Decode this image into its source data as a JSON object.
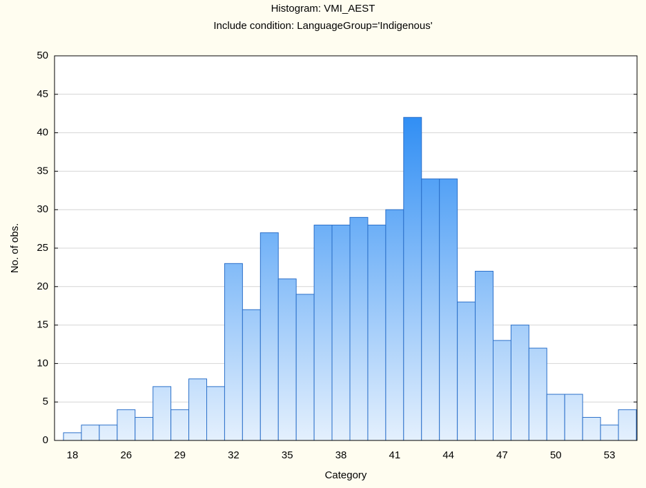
{
  "chart_data": {
    "type": "bar",
    "title": "Histogram: VMI_AEST",
    "subtitle": "Include condition: LanguageGroup='Indigenous'",
    "x_label": "Category",
    "y_label": "No. of obs.",
    "categories": [
      "18",
      null,
      null,
      "26",
      null,
      null,
      "29",
      null,
      null,
      "32",
      null,
      null,
      "35",
      null,
      null,
      "38",
      null,
      null,
      "41",
      null,
      null,
      "44",
      null,
      null,
      "47",
      null,
      null,
      "50",
      null,
      null,
      "53",
      null
    ],
    "values": [
      1,
      2,
      2,
      4,
      3,
      7,
      4,
      8,
      7,
      23,
      17,
      27,
      21,
      19,
      28,
      28,
      29,
      28,
      30,
      42,
      34,
      34,
      18,
      22,
      13,
      15,
      12,
      6,
      6,
      3,
      2,
      4
    ],
    "color": "#3f97f5",
    "ylim": [
      0,
      50
    ],
    "yticks": [
      0,
      5,
      10,
      15,
      20,
      25,
      30,
      35,
      40,
      45,
      50
    ],
    "grid": true
  }
}
